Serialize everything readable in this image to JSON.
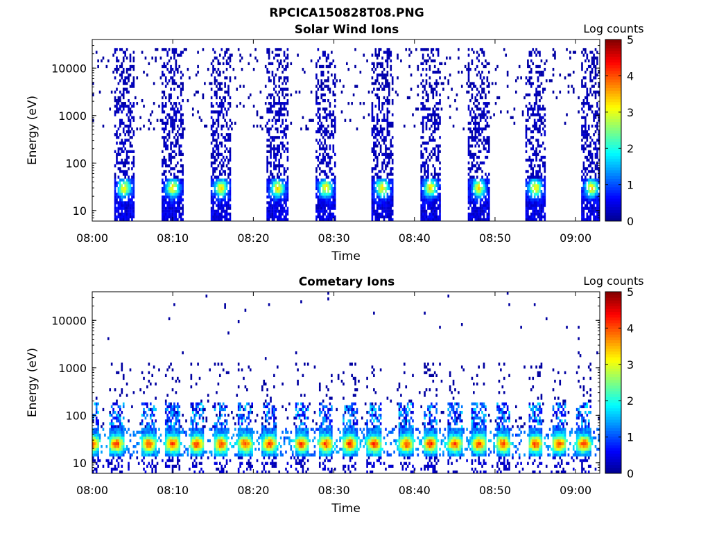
{
  "page_title": "RPCICA150828T08.PNG",
  "colorscale": [
    "#00008f",
    "#0000ff",
    "#0080ff",
    "#00ffff",
    "#80ff80",
    "#ffff00",
    "#ff8000",
    "#ff0000",
    "#800000"
  ],
  "chart_data": [
    {
      "type": "heatmap",
      "title": "Solar Wind Ions",
      "xlabel": "Time",
      "ylabel": "Energy (eV)",
      "colorbar_label": "Log counts",
      "colorbar_ticks": [
        "0",
        "1",
        "2",
        "3",
        "4",
        "5"
      ],
      "clim": [
        0,
        5
      ],
      "y_scale": "log",
      "ylim": [
        6,
        40000
      ],
      "y_ticks": [
        {
          "value": 10,
          "label": "10"
        },
        {
          "value": 100,
          "label": "100"
        },
        {
          "value": 1000,
          "label": "1000"
        },
        {
          "value": 10000,
          "label": "10000"
        }
      ],
      "x_ticks": [
        "08:00",
        "08:10",
        "08:20",
        "08:30",
        "08:40",
        "08:50",
        "09:00"
      ],
      "xlim": [
        "08:00",
        "09:03"
      ],
      "burst_times": [
        "08:04",
        "08:10",
        "08:16",
        "08:23",
        "08:29",
        "08:36",
        "08:42",
        "08:48",
        "08:55",
        "09:02"
      ],
      "peak_energy": 30,
      "peak_log_counts": 3.0
    },
    {
      "type": "heatmap",
      "title": "Cometary Ions",
      "xlabel": "Time",
      "ylabel": "Energy (eV)",
      "colorbar_label": "Log counts",
      "colorbar_ticks": [
        "0",
        "1",
        "2",
        "3",
        "4",
        "5"
      ],
      "clim": [
        0,
        5
      ],
      "y_scale": "log",
      "ylim": [
        6,
        40000
      ],
      "y_ticks": [
        {
          "value": 10,
          "label": "10"
        },
        {
          "value": 100,
          "label": "100"
        },
        {
          "value": 1000,
          "label": "1000"
        },
        {
          "value": 10000,
          "label": "10000"
        }
      ],
      "x_ticks": [
        "08:00",
        "08:10",
        "08:20",
        "08:30",
        "08:40",
        "08:50",
        "09:00"
      ],
      "xlim": [
        "08:00",
        "09:03"
      ],
      "burst_times": [
        "08:00",
        "08:03",
        "08:07",
        "08:10",
        "08:13",
        "08:16",
        "08:19",
        "08:22",
        "08:26",
        "08:29",
        "08:32",
        "08:35",
        "08:39",
        "08:42",
        "08:45",
        "08:48",
        "08:51",
        "08:55",
        "08:58",
        "09:01"
      ],
      "peak_energy": 25,
      "peak_log_counts": 3.8
    }
  ]
}
